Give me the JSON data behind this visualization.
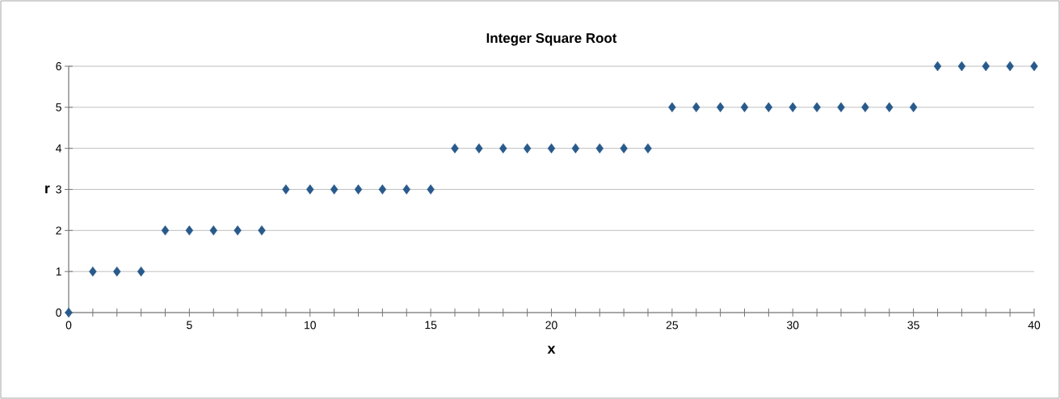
{
  "chart_data": {
    "type": "scatter",
    "title": "Integer Square Root",
    "xlabel": "x",
    "ylabel": "r",
    "x": [
      0,
      1,
      2,
      3,
      4,
      5,
      6,
      7,
      8,
      9,
      10,
      11,
      12,
      13,
      14,
      15,
      16,
      17,
      18,
      19,
      20,
      21,
      22,
      23,
      24,
      25,
      26,
      27,
      28,
      29,
      30,
      31,
      32,
      33,
      34,
      35,
      36,
      37,
      38,
      39,
      40
    ],
    "values": [
      0,
      1,
      1,
      1,
      2,
      2,
      2,
      2,
      2,
      3,
      3,
      3,
      3,
      3,
      3,
      3,
      4,
      4,
      4,
      4,
      4,
      4,
      4,
      4,
      4,
      5,
      5,
      5,
      5,
      5,
      5,
      5,
      5,
      5,
      5,
      5,
      6,
      6,
      6,
      6,
      6
    ],
    "color": "#285a8c",
    "marker": "diamond",
    "grid": "y",
    "xlim": [
      0,
      40
    ],
    "ylim": [
      0,
      6
    ],
    "xticks": [
      0,
      {
        "value": 1,
        "label": null
      },
      {
        "value": 2,
        "label": null
      },
      {
        "value": 3,
        "label": null
      },
      {
        "value": 4,
        "label": null
      },
      5,
      {
        "value": 6,
        "label": null
      },
      {
        "value": 7,
        "label": null
      },
      {
        "value": 8,
        "label": null
      },
      {
        "value": 9,
        "label": null
      },
      10,
      {
        "value": 11,
        "label": null
      },
      {
        "value": 12,
        "label": null
      },
      {
        "value": 13,
        "label": null
      },
      {
        "value": 14,
        "label": null
      },
      15,
      {
        "value": 16,
        "label": null
      },
      {
        "value": 17,
        "label": null
      },
      {
        "value": 18,
        "label": null
      },
      {
        "value": 19,
        "label": null
      },
      20,
      {
        "value": 21,
        "label": null
      },
      {
        "value": 22,
        "label": null
      },
      {
        "value": 23,
        "label": null
      },
      {
        "value": 24,
        "label": null
      },
      25,
      {
        "value": 26,
        "label": null
      },
      {
        "value": 27,
        "label": null
      },
      {
        "value": 28,
        "label": null
      },
      {
        "value": 29,
        "label": null
      },
      30,
      {
        "value": 31,
        "label": null
      },
      {
        "value": 32,
        "label": null
      },
      {
        "value": 33,
        "label": null
      },
      {
        "value": 34,
        "label": null
      },
      35,
      {
        "value": 36,
        "label": null
      },
      {
        "value": 37,
        "label": null
      },
      {
        "value": 38,
        "label": null
      },
      {
        "value": 39,
        "label": null
      },
      40
    ],
    "yticks": [
      0,
      1,
      2,
      3,
      4,
      5,
      6
    ]
  }
}
